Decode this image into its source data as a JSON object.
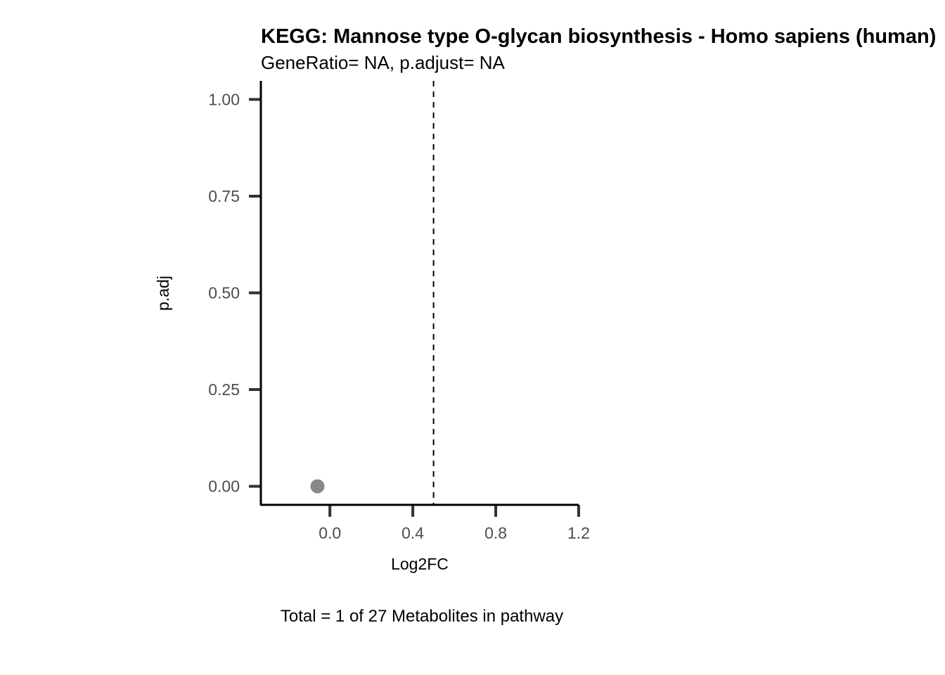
{
  "chart_data": {
    "type": "scatter",
    "title": "KEGG: Mannose type O-glycan biosynthesis - Homo sapiens (human)",
    "subtitle": "GeneRatio= NA, p.adjust= NA",
    "xlabel": "Log2FC",
    "ylabel": "p.adj",
    "caption": "Total = 1 of 27 Metabolites in pathway",
    "xlim": [
      -0.333,
      1.2
    ],
    "ylim": [
      -0.048,
      1.048
    ],
    "x_ticks": [
      0.0,
      0.4,
      0.8,
      1.2
    ],
    "x_tick_labels": [
      "0.0",
      "0.4",
      "0.8",
      "1.2"
    ],
    "y_ticks": [
      0.0,
      0.25,
      0.5,
      0.75,
      1.0
    ],
    "y_tick_labels": [
      "0.00",
      "0.25",
      "0.50",
      "0.75",
      "1.00"
    ],
    "vline": 0.5,
    "grid": false,
    "legend": "none",
    "points": [
      {
        "x": -0.06,
        "y": 0.0
      }
    ],
    "colors": {
      "point": "#888888",
      "axis": "#000000",
      "tick": "#333333",
      "tick_label": "#4d4d4d",
      "reference_line": "#000000"
    }
  }
}
